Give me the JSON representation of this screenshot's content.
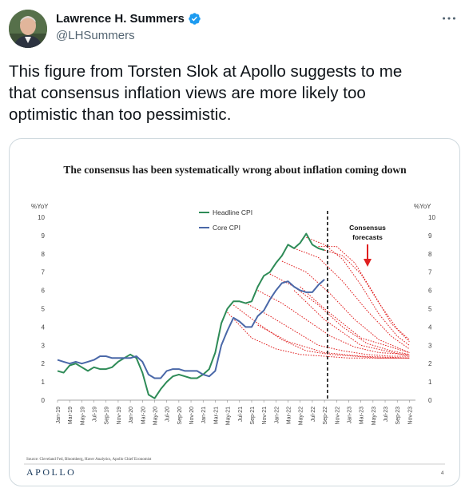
{
  "tweet": {
    "author_name": "Lawrence H. Summers",
    "author_handle": "@LHSummers",
    "verified_icon": "verified-badge-icon",
    "more_icon": "more-options-icon",
    "text_lines": [
      "This figure from Torsten Slok at Apollo suggests to me",
      "that consensus inflation views are more likely too",
      "optimistic than too pessimistic."
    ],
    "accent_color": "#1d9bf0"
  },
  "chart_data": {
    "type": "line",
    "title": "The consensus has been systematically wrong about inflation coming down",
    "y_label_left": "%YoY",
    "y_label_right": "%YoY",
    "ylim": [
      0,
      10
    ],
    "y_ticks": [
      "0",
      "1",
      "2",
      "3",
      "4",
      "5",
      "6",
      "7",
      "8",
      "9",
      "10"
    ],
    "x_tick_labels": [
      "Jan-19",
      "Mar-19",
      "May-19",
      "Jul-19",
      "Sep-19",
      "Nov-19",
      "Jan-20",
      "Mar-20",
      "May-20",
      "Jul-20",
      "Sep-20",
      "Nov-20",
      "Jan-21",
      "Mar-21",
      "May-21",
      "Jul-21",
      "Sep-21",
      "Nov-21",
      "Jan-22",
      "Mar-22",
      "May-22",
      "Jul-22",
      "Sep-22",
      "Nov-22",
      "Jan-23",
      "Mar-23",
      "May-23",
      "Jul-23",
      "Sep-23",
      "Nov-23"
    ],
    "legend": [
      "Headline CPI",
      "Core CPI"
    ],
    "annotation": [
      "Consensus",
      "forecasts"
    ],
    "source": "Source: Cleveland Fed, Bloomberg, Haver Analytics, Apollo Chief Economist",
    "logo": "APOLLO",
    "page_number": "4",
    "colors": {
      "headline": "#2e8b57",
      "core": "#4a68a8",
      "forecast": "#e02020",
      "vline": "#111111"
    },
    "series": [
      {
        "name": "Headline CPI",
        "x": [
          0,
          1,
          2,
          3,
          4,
          5,
          6,
          7,
          8,
          9,
          10,
          11,
          12,
          13,
          14,
          15,
          16,
          17,
          18,
          19,
          20,
          21,
          22,
          23,
          24,
          25,
          26,
          27,
          28,
          29,
          30,
          31,
          32,
          33,
          34,
          35,
          36,
          37,
          38,
          39,
          40,
          41,
          42,
          43,
          44
        ],
        "values": [
          1.6,
          1.5,
          1.9,
          2.0,
          1.8,
          1.6,
          1.8,
          1.7,
          1.7,
          1.8,
          2.1,
          2.3,
          2.5,
          2.3,
          1.5,
          0.3,
          0.1,
          0.6,
          1.0,
          1.3,
          1.4,
          1.3,
          1.2,
          1.2,
          1.4,
          1.7,
          2.6,
          4.2,
          5.0,
          5.4,
          5.4,
          5.3,
          5.4,
          6.2,
          6.8,
          7.0,
          7.5,
          7.9,
          8.5,
          8.3,
          8.6,
          9.1,
          8.5,
          8.3,
          8.2
        ]
      },
      {
        "name": "Core CPI",
        "x": [
          0,
          1,
          2,
          3,
          4,
          5,
          6,
          7,
          8,
          9,
          10,
          11,
          12,
          13,
          14,
          15,
          16,
          17,
          18,
          19,
          20,
          21,
          22,
          23,
          24,
          25,
          26,
          27,
          28,
          29,
          30,
          31,
          32,
          33,
          34,
          35,
          36,
          37,
          38,
          39,
          40,
          41,
          42,
          43,
          44
        ],
        "values": [
          2.2,
          2.1,
          2.0,
          2.1,
          2.0,
          2.1,
          2.2,
          2.4,
          2.4,
          2.3,
          2.3,
          2.3,
          2.3,
          2.4,
          2.1,
          1.4,
          1.2,
          1.2,
          1.6,
          1.7,
          1.7,
          1.6,
          1.6,
          1.6,
          1.4,
          1.3,
          1.6,
          3.0,
          3.8,
          4.5,
          4.3,
          4.0,
          4.0,
          4.6,
          4.9,
          5.5,
          6.0,
          6.4,
          6.5,
          6.2,
          6.0,
          5.9,
          5.9,
          6.3,
          6.6
        ]
      },
      {
        "name": "",
        "x": [
          28,
          32,
          36,
          40,
          44,
          48,
          52,
          56,
          58
        ],
        "values": [
          4.8,
          3.4,
          2.8,
          2.5,
          2.4,
          2.3,
          2.3,
          2.3,
          2.3
        ]
      },
      {
        "name": "",
        "x": [
          29,
          33,
          37,
          41,
          45,
          49,
          53,
          58
        ],
        "values": [
          5.2,
          4.2,
          3.3,
          2.7,
          2.5,
          2.4,
          2.3,
          2.3
        ]
      },
      {
        "name": "",
        "x": [
          31,
          35,
          39,
          43,
          47,
          51,
          55,
          58
        ],
        "values": [
          5.3,
          4.6,
          3.8,
          3.0,
          2.7,
          2.5,
          2.4,
          2.4
        ]
      },
      {
        "name": "",
        "x": [
          33,
          37,
          41,
          45,
          49,
          53,
          58
        ],
        "values": [
          6.0,
          5.3,
          4.4,
          3.5,
          2.9,
          2.6,
          2.5
        ]
      },
      {
        "name": "",
        "x": [
          35,
          39,
          43,
          47,
          51,
          55,
          58
        ],
        "values": [
          6.9,
          6.2,
          5.2,
          4.0,
          3.1,
          2.7,
          2.5
        ]
      },
      {
        "name": "",
        "x": [
          37,
          41,
          45,
          49,
          53,
          58
        ],
        "values": [
          7.6,
          7.0,
          5.8,
          4.4,
          3.3,
          2.6
        ]
      },
      {
        "name": "",
        "x": [
          39,
          43,
          47,
          51,
          55,
          58
        ],
        "values": [
          8.3,
          7.8,
          6.5,
          4.9,
          3.5,
          2.8
        ]
      },
      {
        "name": "",
        "x": [
          41,
          44,
          47,
          50,
          53,
          56,
          58
        ],
        "values": [
          8.9,
          8.5,
          7.7,
          6.3,
          4.7,
          3.5,
          3.0
        ]
      },
      {
        "name": "",
        "x": [
          43,
          46,
          49,
          52,
          55,
          58
        ],
        "values": [
          8.4,
          8.4,
          7.5,
          5.9,
          4.2,
          3.2
        ]
      },
      {
        "name": "",
        "x": [
          44,
          47,
          50,
          53,
          56,
          58
        ],
        "values": [
          8.2,
          7.9,
          6.9,
          5.3,
          3.9,
          3.3
        ]
      },
      {
        "name": "",
        "x": [
          33,
          38,
          44,
          50,
          58
        ],
        "values": [
          4.1,
          3.2,
          2.6,
          2.4,
          2.3
        ]
      },
      {
        "name": "",
        "x": [
          39,
          44,
          50,
          58
        ],
        "values": [
          6.0,
          4.4,
          3.0,
          2.4
        ]
      },
      {
        "name": "",
        "x": [
          40,
          44,
          50,
          58
        ],
        "values": [
          6.2,
          5.0,
          3.4,
          2.6
        ]
      }
    ],
    "vline_x": 44.5,
    "x_max": 59
  }
}
